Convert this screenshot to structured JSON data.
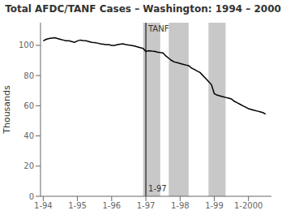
{
  "chart_data": {
    "type": "line",
    "title": "Total AFDC/TANF Cases – Washington: 1994 – 2000",
    "ylabel": "Thousands",
    "xlim": [
      1993.92,
      2000.67
    ],
    "xticks": [
      {
        "value": 1994,
        "label": "1-94"
      },
      {
        "value": 1995,
        "label": "1-95"
      },
      {
        "value": 1996,
        "label": "1-96"
      },
      {
        "value": 1997,
        "label": "1-97"
      },
      {
        "value": 1998,
        "label": "1-98"
      },
      {
        "value": 1999,
        "label": "1-99"
      },
      {
        "value": 2000,
        "label": "1-2000"
      }
    ],
    "ylim": [
      0,
      115
    ],
    "yticks": [
      0,
      20,
      40,
      60,
      80,
      100
    ],
    "grid": false,
    "color": "#000000",
    "shaded_ranges": [
      {
        "x": [
          1996.92,
          1997.42
        ],
        "color": "#c8c8c8"
      },
      {
        "x": [
          1997.67,
          1998.25
        ],
        "color": "#c8c8c8"
      },
      {
        "x": [
          1998.83,
          1999.33
        ],
        "color": "#c8c8c8"
      }
    ],
    "vertical_line": {
      "x": 1997.0,
      "color": "#000000",
      "labels": [
        "TANF",
        "1-97"
      ]
    },
    "x": [
      1994.0,
      1994.083,
      1994.167,
      1994.25,
      1994.333,
      1994.417,
      1994.5,
      1994.583,
      1994.667,
      1994.75,
      1994.833,
      1994.917,
      1995.0,
      1995.083,
      1995.167,
      1995.25,
      1995.333,
      1995.417,
      1995.5,
      1995.583,
      1995.667,
      1995.75,
      1995.833,
      1995.917,
      1996.0,
      1996.083,
      1996.167,
      1996.25,
      1996.333,
      1996.417,
      1996.5,
      1996.583,
      1996.667,
      1996.75,
      1996.833,
      1996.917,
      1997.0,
      1997.083,
      1997.167,
      1997.25,
      1997.333,
      1997.417,
      1997.5,
      1997.583,
      1997.667,
      1997.75,
      1997.833,
      1997.917,
      1998.0,
      1998.083,
      1998.167,
      1998.25,
      1998.333,
      1998.417,
      1998.5,
      1998.583,
      1998.667,
      1998.75,
      1998.833,
      1998.917,
      1999.0,
      1999.083,
      1999.167,
      1999.25,
      1999.333,
      1999.417,
      1999.5,
      1999.583,
      1999.667,
      1999.75,
      1999.833,
      1999.917,
      2000.0,
      2000.083,
      2000.167,
      2000.25,
      2000.333,
      2000.417,
      2000.5
    ],
    "values": [
      103,
      104,
      104.5,
      104.8,
      105,
      104.5,
      104,
      103.5,
      103,
      103,
      102.5,
      102,
      103,
      103.5,
      103.2,
      103,
      102.5,
      102,
      101.8,
      101.5,
      101,
      100.8,
      100.5,
      100.5,
      100,
      100,
      100.5,
      100.8,
      101,
      100.5,
      100.2,
      100,
      99.5,
      99,
      98.5,
      98,
      96,
      96.5,
      96.2,
      96,
      95.5,
      95.2,
      95,
      93,
      91.5,
      90,
      89,
      88.5,
      88,
      87.5,
      87,
      86.5,
      85,
      84,
      83,
      82,
      80,
      78,
      76,
      74,
      68,
      67,
      66.5,
      66,
      65.5,
      65,
      64.5,
      63,
      62,
      61,
      60,
      59,
      58,
      57.5,
      57,
      56.5,
      56,
      55.5,
      54.5
    ]
  }
}
